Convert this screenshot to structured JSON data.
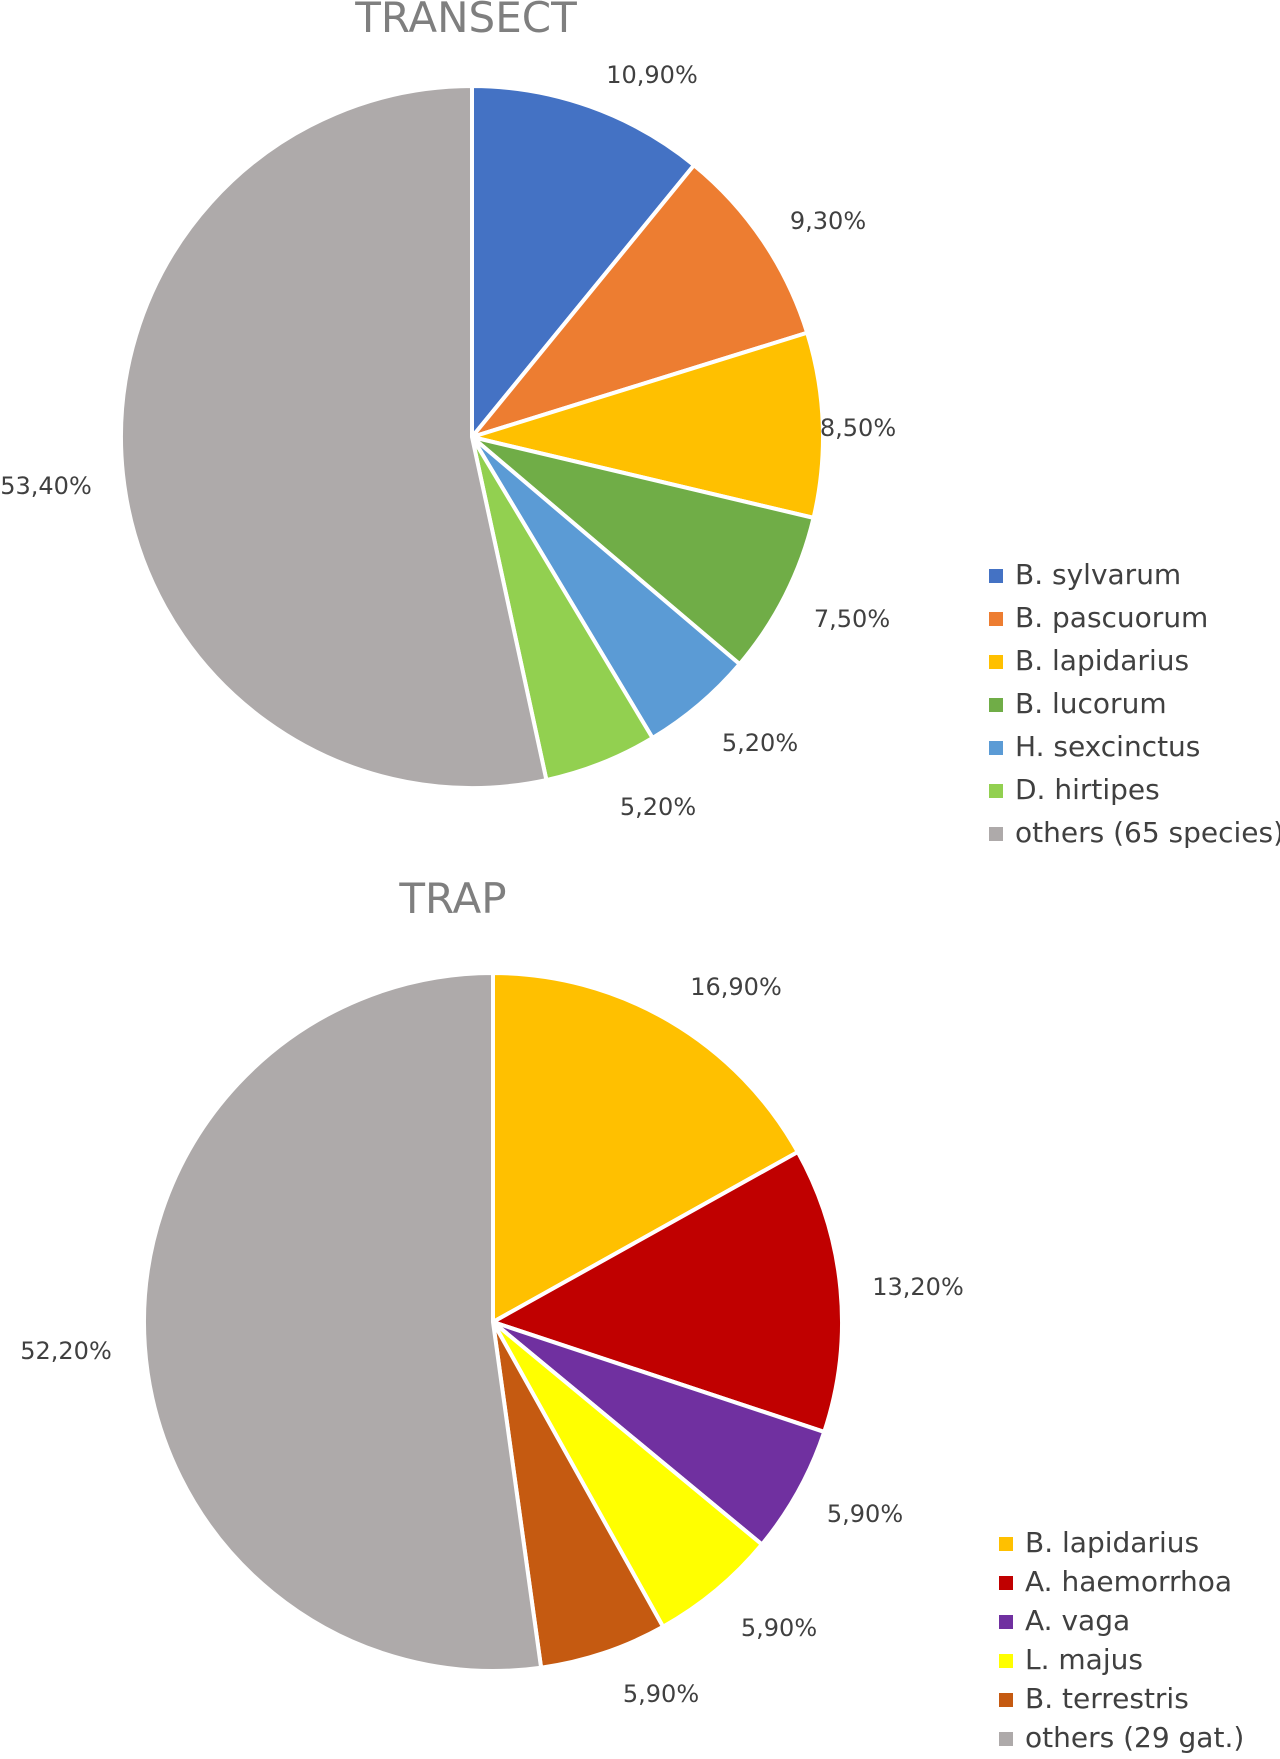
{
  "chart_data": [
    {
      "type": "pie",
      "title": "TRANSECT",
      "categories": [
        "B. sylvarum",
        "B. pascuorum",
        "B. lapidarius",
        "B. lucorum",
        "H. sexcinctus",
        "D. hirtipes",
        "others (65 species)"
      ],
      "values": [
        10.9,
        9.3,
        8.5,
        7.5,
        5.2,
        5.2,
        53.4
      ],
      "data_labels": [
        "10,90%",
        "9,30%",
        "8,50%",
        "7,50%",
        "5,20%",
        "5,20%",
        "53,40%"
      ],
      "colors": [
        "#4472C4",
        "#ED7D31",
        "#FFC000",
        "#70AD47",
        "#5B9BD5",
        "#92D050",
        "#AEAAAA"
      ],
      "legend": "right"
    },
    {
      "type": "pie",
      "title": "TRAP",
      "categories": [
        "B. lapidarius",
        "A. haemorrhoa",
        "A. vaga",
        "L. majus",
        "B. terrestris",
        "others (29 gat.)"
      ],
      "values": [
        16.9,
        13.2,
        5.9,
        5.9,
        5.9,
        52.2
      ],
      "data_labels": [
        "16,90%",
        "13,20%",
        "5,90%",
        "5,90%",
        "5,90%",
        "52,20%"
      ],
      "colors": [
        "#FFC000",
        "#C00000",
        "#7030A0",
        "#FFFF00",
        "#C55A11",
        "#AEAAAA"
      ],
      "legend": "right"
    }
  ]
}
